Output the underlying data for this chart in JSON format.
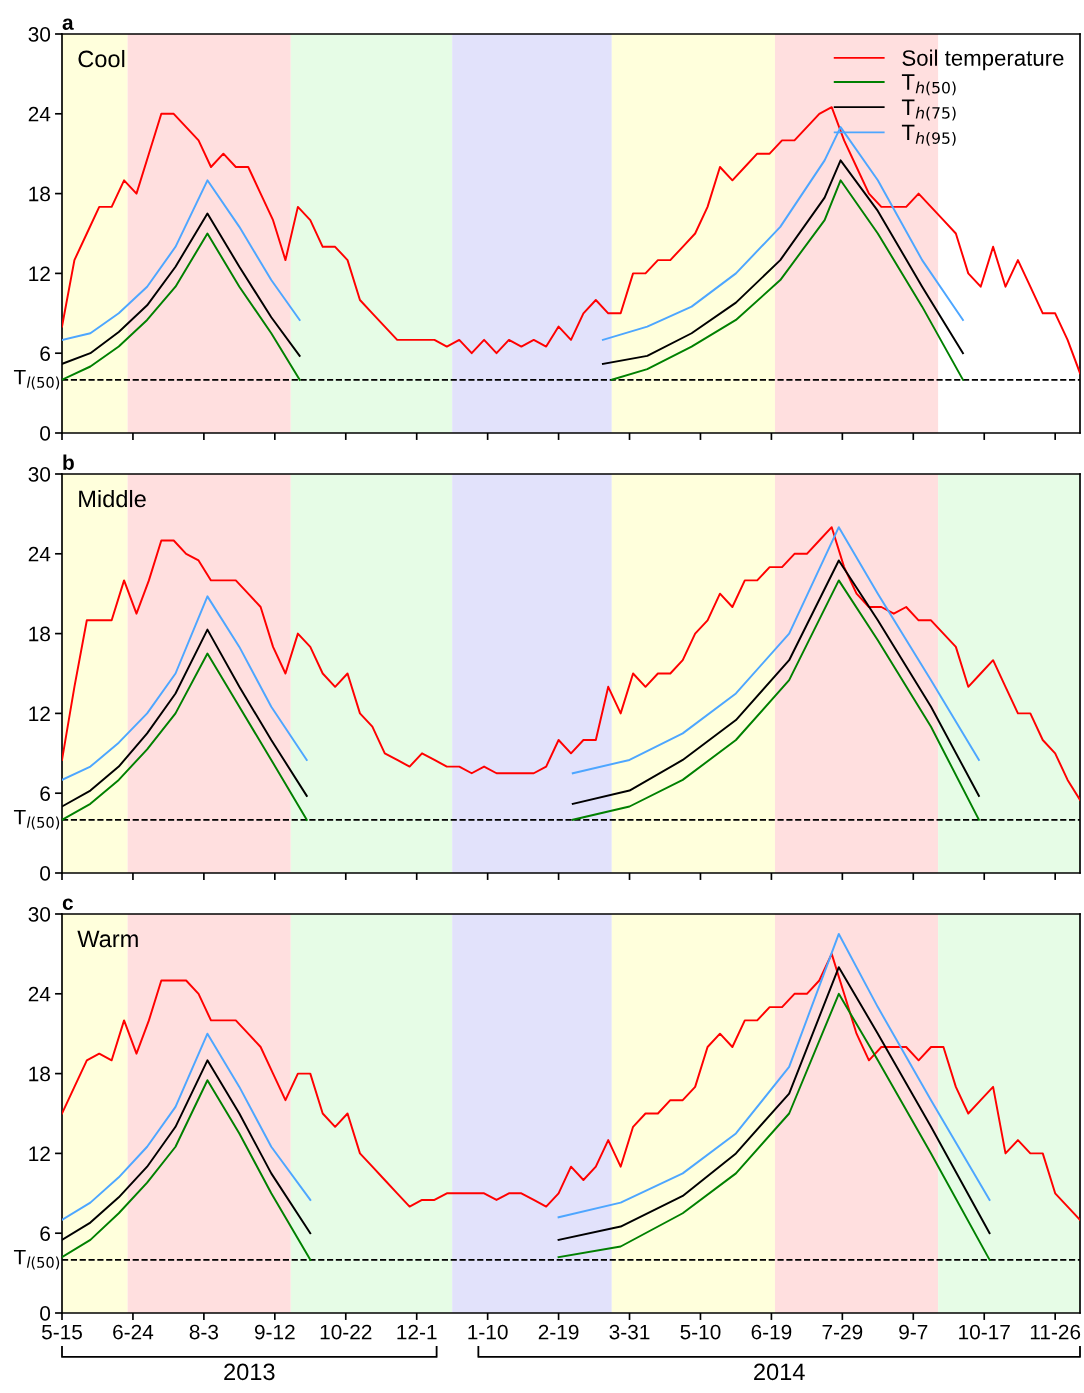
{
  "chart_data": [
    {
      "type": "line",
      "title": "a",
      "subtitle": "Cool",
      "legend": "top right",
      "tick_labels": "y",
      "xlim": [
        "2013-05-15",
        "2014-12-10"
      ],
      "ylim": [
        0,
        30
      ],
      "yticks": [
        0,
        6,
        12,
        18,
        24,
        30
      ],
      "xticks": [
        {
          "value": "2013-05-15",
          "label": null
        },
        {
          "value": "2013-06-24",
          "label": null
        },
        {
          "value": "2013-08-03",
          "label": null
        },
        {
          "value": "2013-09-12",
          "label": null
        },
        {
          "value": "2013-10-22",
          "label": null
        },
        {
          "value": "2013-12-01",
          "label": null
        },
        {
          "value": "2014-01-10",
          "label": null
        },
        {
          "value": "2014-02-19",
          "label": null
        },
        {
          "value": "2014-03-31",
          "label": null
        },
        {
          "value": "2014-05-10",
          "label": null
        },
        {
          "value": "2014-06-19",
          "label": null
        },
        {
          "value": "2014-07-29",
          "label": null
        },
        {
          "value": "2014-09-07",
          "label": null
        },
        {
          "value": "2014-10-17",
          "label": null
        },
        {
          "value": "2014-11-26",
          "label": null
        }
      ],
      "bands": [
        {
          "axis": "x",
          "from": "2013-05-15",
          "to": "2013-06-21",
          "color": "#ffffdc"
        },
        {
          "axis": "x",
          "from": "2013-06-21",
          "to": "2013-09-21",
          "color": "#ffdfdf"
        },
        {
          "axis": "x",
          "from": "2013-09-21",
          "to": "2013-12-21",
          "color": "#e6fce6"
        },
        {
          "axis": "x",
          "from": "2013-12-21",
          "to": "2014-03-21",
          "color": "#e2e2fb"
        },
        {
          "axis": "x",
          "from": "2014-03-21",
          "to": "2014-06-21",
          "color": "#ffffdc"
        },
        {
          "axis": "x",
          "from": "2014-06-21",
          "to": "2014-09-21",
          "color": "#ffdfdf"
        }
      ],
      "ref_lines": [
        {
          "axis": "y",
          "value": 4,
          "label": "T$_{l(50)}$",
          "color": "#000000",
          "line_style": "dashed"
        }
      ],
      "x": [
        "2013-05-15",
        "2013-05-22",
        "2013-05-29",
        "2013-06-05",
        "2013-06-12",
        "2013-06-19",
        "2013-06-26",
        "2013-07-03",
        "2013-07-10",
        "2013-07-17",
        "2013-07-24",
        "2013-07-31",
        "2013-08-07",
        "2013-08-14",
        "2013-08-21",
        "2013-08-28",
        "2013-09-04",
        "2013-09-11",
        "2013-09-18",
        "2013-09-25",
        "2013-10-02",
        "2013-10-09",
        "2013-10-16",
        "2013-10-23",
        "2013-10-30",
        "2013-11-06",
        "2013-11-13",
        "2013-11-20",
        "2013-11-27",
        "2013-12-04",
        "2013-12-11",
        "2013-12-18",
        "2013-12-25",
        "2014-01-01",
        "2014-01-08",
        "2014-01-15",
        "2014-01-22",
        "2014-01-29",
        "2014-02-05",
        "2014-02-12",
        "2014-02-19",
        "2014-02-26",
        "2014-03-05",
        "2014-03-12",
        "2014-03-19",
        "2014-03-26",
        "2014-04-02",
        "2014-04-09",
        "2014-04-16",
        "2014-04-23",
        "2014-04-30",
        "2014-05-07",
        "2014-05-14",
        "2014-05-21",
        "2014-05-28",
        "2014-06-04",
        "2014-06-11",
        "2014-06-18",
        "2014-06-25",
        "2014-07-02",
        "2014-07-09",
        "2014-07-16",
        "2014-07-23",
        "2014-07-30",
        "2014-08-06",
        "2014-08-13",
        "2014-08-20",
        "2014-08-27",
        "2014-09-03",
        "2014-09-10",
        "2014-09-17",
        "2014-09-24",
        "2014-10-01",
        "2014-10-08",
        "2014-10-15",
        "2014-10-22",
        "2014-10-29",
        "2014-11-05",
        "2014-11-12",
        "2014-11-19",
        "2014-11-26",
        "2014-12-03",
        "2014-12-10"
      ],
      "series": [
        {
          "name": "Soil temperature",
          "color": "#ff0000",
          "values": [
            8,
            13,
            15,
            17,
            17,
            19,
            18,
            21,
            24,
            24,
            23,
            22,
            20,
            21,
            20,
            20,
            18,
            16,
            13,
            17,
            16,
            14,
            14,
            13,
            10,
            9,
            8,
            7,
            7,
            7,
            7,
            6.5,
            7,
            6,
            7,
            6,
            7,
            6.5,
            7,
            6.5,
            8,
            7,
            9,
            10,
            9,
            9,
            12,
            12,
            13,
            13,
            14,
            15,
            17,
            20,
            19,
            20,
            21,
            21,
            22,
            22,
            23,
            24,
            24.5,
            22,
            20,
            18,
            17,
            17,
            17,
            18,
            17,
            16,
            15,
            12,
            11,
            14,
            11,
            13,
            11,
            9,
            9,
            7,
            4.5
          ]
        },
        {
          "name": "T$_{h(50)}$",
          "color": "#008000",
          "x": [
            "2013-05-15",
            "2013-05-31",
            "2013-06-16",
            "2013-07-02",
            "2013-07-18",
            "2013-08-05",
            "2013-08-23",
            "2013-09-10",
            "2013-09-26",
            "2014-01-01",
            "2014-03-21",
            "2014-04-10",
            "2014-05-05",
            "2014-05-30",
            "2014-06-24",
            "2014-07-19",
            "2014-07-28",
            "2014-08-18",
            "2014-09-12",
            "2014-10-05"
          ],
          "values": [
            4,
            5,
            6.5,
            8.5,
            11,
            15,
            11,
            7.5,
            4,
            null,
            4,
            4.8,
            6.5,
            8.5,
            11.5,
            16,
            19,
            15,
            9.5,
            4
          ]
        },
        {
          "name": "T$_{h(75)}$",
          "color": "#000000",
          "x": [
            "2013-05-15",
            "2013-05-31",
            "2013-06-16",
            "2013-07-02",
            "2013-07-18",
            "2013-08-05",
            "2013-08-23",
            "2013-09-10",
            "2013-09-26",
            "2014-01-01",
            "2014-03-16",
            "2014-04-10",
            "2014-05-05",
            "2014-05-30",
            "2014-06-24",
            "2014-07-19",
            "2014-07-28",
            "2014-08-18",
            "2014-09-12",
            "2014-10-05"
          ],
          "values": [
            5.2,
            6,
            7.6,
            9.6,
            12.5,
            16.5,
            12.5,
            8.7,
            5.8,
            null,
            5.2,
            5.8,
            7.5,
            9.8,
            13,
            17.7,
            20.5,
            16.7,
            11,
            6
          ]
        },
        {
          "name": "T$_{h(95)}$",
          "color": "#4da6ff",
          "x": [
            "2013-05-15",
            "2013-05-31",
            "2013-06-16",
            "2013-07-02",
            "2013-07-18",
            "2013-08-05",
            "2013-08-23",
            "2013-09-10",
            "2013-09-26",
            "2014-01-01",
            "2014-03-16",
            "2014-04-10",
            "2014-05-05",
            "2014-05-30",
            "2014-06-24",
            "2014-07-19",
            "2014-07-28",
            "2014-08-18",
            "2014-09-12",
            "2014-10-05"
          ],
          "values": [
            7,
            7.5,
            9,
            11,
            14,
            19,
            15.5,
            11.5,
            8.5,
            null,
            7,
            8,
            9.5,
            12,
            15.5,
            20.5,
            23,
            19,
            13,
            8.5
          ]
        }
      ]
    },
    {
      "type": "line",
      "title": "b",
      "subtitle": "Middle",
      "tick_labels": "y",
      "xlim": [
        "2013-05-15",
        "2014-12-10"
      ],
      "ylim": [
        0,
        30
      ],
      "yticks": [
        0,
        6,
        12,
        18,
        24,
        30
      ],
      "xticks": [
        {
          "value": "2013-05-15",
          "label": null
        },
        {
          "value": "2013-06-24",
          "label": null
        },
        {
          "value": "2013-08-03",
          "label": null
        },
        {
          "value": "2013-09-12",
          "label": null
        },
        {
          "value": "2013-10-22",
          "label": null
        },
        {
          "value": "2013-12-01",
          "label": null
        },
        {
          "value": "2014-01-10",
          "label": null
        },
        {
          "value": "2014-02-19",
          "label": null
        },
        {
          "value": "2014-03-31",
          "label": null
        },
        {
          "value": "2014-05-10",
          "label": null
        },
        {
          "value": "2014-06-19",
          "label": null
        },
        {
          "value": "2014-07-29",
          "label": null
        },
        {
          "value": "2014-09-07",
          "label": null
        },
        {
          "value": "2014-10-17",
          "label": null
        },
        {
          "value": "2014-11-26",
          "label": null
        }
      ],
      "bands": [
        {
          "axis": "x",
          "from": "2013-05-15",
          "to": "2013-06-21",
          "color": "#ffffdc"
        },
        {
          "axis": "x",
          "from": "2013-06-21",
          "to": "2013-09-21",
          "color": "#ffdfdf"
        },
        {
          "axis": "x",
          "from": "2013-09-21",
          "to": "2013-12-21",
          "color": "#e6fce6"
        },
        {
          "axis": "x",
          "from": "2013-12-21",
          "to": "2014-03-21",
          "color": "#e2e2fb"
        },
        {
          "axis": "x",
          "from": "2014-03-21",
          "to": "2014-06-21",
          "color": "#ffffdc"
        },
        {
          "axis": "x",
          "from": "2014-06-21",
          "to": "2014-09-21",
          "color": "#ffdfdf"
        },
        {
          "axis": "x",
          "from": "2014-09-21",
          "to": "2014-12-10",
          "color": "#e6fce6"
        }
      ],
      "ref_lines": [
        {
          "axis": "y",
          "value": 4,
          "label": "T$_{l(50)}$",
          "color": "#000000",
          "line_style": "dashed"
        }
      ],
      "x": [
        "2013-05-15",
        "2013-05-22",
        "2013-05-29",
        "2013-06-05",
        "2013-06-12",
        "2013-06-19",
        "2013-06-26",
        "2013-07-03",
        "2013-07-10",
        "2013-07-17",
        "2013-07-24",
        "2013-07-31",
        "2013-08-07",
        "2013-08-14",
        "2013-08-21",
        "2013-08-28",
        "2013-09-04",
        "2013-09-11",
        "2013-09-18",
        "2013-09-25",
        "2013-10-02",
        "2013-10-09",
        "2013-10-16",
        "2013-10-23",
        "2013-10-30",
        "2013-11-06",
        "2013-11-13",
        "2013-11-20",
        "2013-11-27",
        "2013-12-04",
        "2013-12-11",
        "2013-12-18",
        "2013-12-25",
        "2014-01-01",
        "2014-01-08",
        "2014-01-15",
        "2014-01-22",
        "2014-01-29",
        "2014-02-05",
        "2014-02-12",
        "2014-02-19",
        "2014-02-26",
        "2014-03-05",
        "2014-03-12",
        "2014-03-19",
        "2014-03-26",
        "2014-04-02",
        "2014-04-09",
        "2014-04-16",
        "2014-04-23",
        "2014-04-30",
        "2014-05-07",
        "2014-05-14",
        "2014-05-21",
        "2014-05-28",
        "2014-06-04",
        "2014-06-11",
        "2014-06-18",
        "2014-06-25",
        "2014-07-02",
        "2014-07-09",
        "2014-07-16",
        "2014-07-23",
        "2014-07-30",
        "2014-08-06",
        "2014-08-13",
        "2014-08-20",
        "2014-08-27",
        "2014-09-03",
        "2014-09-10",
        "2014-09-17",
        "2014-09-24",
        "2014-10-01",
        "2014-10-08",
        "2014-10-15",
        "2014-10-22",
        "2014-10-29",
        "2014-11-05",
        "2014-11-12",
        "2014-11-19",
        "2014-11-26",
        "2014-12-03",
        "2014-12-10"
      ],
      "series": [
        {
          "color": "#ff0000",
          "values": [
            8.5,
            14,
            19,
            19,
            19,
            22,
            19.5,
            22,
            25,
            25,
            24,
            23.5,
            22,
            22,
            22,
            21,
            20,
            17,
            15,
            18,
            17,
            15,
            14,
            15,
            12,
            11,
            9,
            8.5,
            8,
            9,
            8.5,
            8,
            8,
            7.5,
            8,
            7.5,
            7.5,
            7.5,
            7.5,
            8,
            10,
            9,
            10,
            10,
            14,
            12,
            15,
            14,
            15,
            15,
            16,
            18,
            19,
            21,
            20,
            22,
            22,
            23,
            23,
            24,
            24,
            25,
            26,
            23,
            21,
            20,
            20,
            19.5,
            20,
            19,
            19,
            18,
            17,
            14,
            15,
            16,
            14,
            12,
            12,
            10,
            9,
            7,
            5.5
          ]
        },
        {
          "color": "#008000",
          "x": [
            "2013-05-15",
            "2013-05-31",
            "2013-06-16",
            "2013-07-02",
            "2013-07-18",
            "2013-08-05",
            "2013-08-23",
            "2013-09-10",
            "2013-09-30",
            "2014-01-01",
            "2014-02-27",
            "2014-03-31",
            "2014-04-30",
            "2014-05-30",
            "2014-06-29",
            "2014-07-27",
            "2014-08-18",
            "2014-09-17",
            "2014-10-14"
          ],
          "values": [
            4,
            5.2,
            7,
            9.3,
            12,
            16.5,
            12.5,
            8.5,
            4,
            null,
            4,
            5,
            7,
            10,
            14.5,
            22,
            17.5,
            11,
            4
          ]
        },
        {
          "color": "#000000",
          "x": [
            "2013-05-15",
            "2013-05-31",
            "2013-06-16",
            "2013-07-02",
            "2013-07-18",
            "2013-08-05",
            "2013-08-23",
            "2013-09-10",
            "2013-09-30",
            "2014-01-01",
            "2014-02-27",
            "2014-03-31",
            "2014-04-30",
            "2014-05-30",
            "2014-06-29",
            "2014-07-27",
            "2014-08-18",
            "2014-09-17",
            "2014-10-14"
          ],
          "values": [
            5,
            6.2,
            8,
            10.5,
            13.5,
            18.3,
            14,
            10,
            5.8,
            null,
            5.2,
            6.2,
            8.5,
            11.5,
            16,
            23.5,
            19,
            12.5,
            5.8
          ]
        },
        {
          "color": "#4da6ff",
          "x": [
            "2013-05-15",
            "2013-05-31",
            "2013-06-16",
            "2013-07-02",
            "2013-07-18",
            "2013-08-05",
            "2013-08-23",
            "2013-09-10",
            "2013-09-30",
            "2014-01-01",
            "2014-02-27",
            "2014-03-31",
            "2014-04-30",
            "2014-05-30",
            "2014-06-29",
            "2014-07-27",
            "2014-08-18",
            "2014-09-17",
            "2014-10-14"
          ],
          "values": [
            7,
            8,
            9.8,
            12,
            15,
            20.8,
            17,
            12.5,
            8.5,
            null,
            7.5,
            8.5,
            10.5,
            13.5,
            18,
            26,
            21,
            14.5,
            8.5
          ]
        }
      ]
    },
    {
      "type": "line",
      "title": "c",
      "subtitle": "Warm",
      "annotations": [
        "2013",
        "2014"
      ],
      "xlim": [
        "2013-05-15",
        "2014-12-10"
      ],
      "ylim": [
        0,
        30
      ],
      "yticks": [
        0,
        6,
        12,
        18,
        24,
        30
      ],
      "xticks": [
        {
          "value": "2013-05-15",
          "label": "5-15"
        },
        {
          "value": "2013-06-24",
          "label": "6-24"
        },
        {
          "value": "2013-08-03",
          "label": "8-3"
        },
        {
          "value": "2013-09-12",
          "label": "9-12"
        },
        {
          "value": "2013-10-22",
          "label": "10-22"
        },
        {
          "value": "2013-12-01",
          "label": "12-1"
        },
        {
          "value": "2014-01-10",
          "label": "1-10"
        },
        {
          "value": "2014-02-19",
          "label": "2-19"
        },
        {
          "value": "2014-03-31",
          "label": "3-31"
        },
        {
          "value": "2014-05-10",
          "label": "5-10"
        },
        {
          "value": "2014-06-19",
          "label": "6-19"
        },
        {
          "value": "2014-07-29",
          "label": "7-29"
        },
        {
          "value": "2014-09-07",
          "label": "9-7"
        },
        {
          "value": "2014-10-17",
          "label": "10-17"
        },
        {
          "value": "2014-11-26",
          "label": "11-26"
        }
      ],
      "bands": [
        {
          "axis": "x",
          "from": "2013-05-15",
          "to": "2013-06-21",
          "color": "#ffffdc"
        },
        {
          "axis": "x",
          "from": "2013-06-21",
          "to": "2013-09-21",
          "color": "#ffdfdf"
        },
        {
          "axis": "x",
          "from": "2013-09-21",
          "to": "2013-12-21",
          "color": "#e6fce6"
        },
        {
          "axis": "x",
          "from": "2013-12-21",
          "to": "2014-03-21",
          "color": "#e2e2fb"
        },
        {
          "axis": "x",
          "from": "2014-03-21",
          "to": "2014-06-21",
          "color": "#ffffdc"
        },
        {
          "axis": "x",
          "from": "2014-06-21",
          "to": "2014-09-21",
          "color": "#ffdfdf"
        },
        {
          "axis": "x",
          "from": "2014-09-21",
          "to": "2014-12-10",
          "color": "#e6fce6"
        }
      ],
      "ref_lines": [
        {
          "axis": "y",
          "value": 4,
          "label": "T$_{l(50)}$",
          "color": "#000000",
          "line_style": "dashed"
        }
      ],
      "x": [
        "2013-05-15",
        "2013-05-22",
        "2013-05-29",
        "2013-06-05",
        "2013-06-12",
        "2013-06-19",
        "2013-06-26",
        "2013-07-03",
        "2013-07-10",
        "2013-07-17",
        "2013-07-24",
        "2013-07-31",
        "2013-08-07",
        "2013-08-14",
        "2013-08-21",
        "2013-08-28",
        "2013-09-04",
        "2013-09-11",
        "2013-09-18",
        "2013-09-25",
        "2013-10-02",
        "2013-10-09",
        "2013-10-16",
        "2013-10-23",
        "2013-10-30",
        "2013-11-06",
        "2013-11-13",
        "2013-11-20",
        "2013-11-27",
        "2013-12-04",
        "2013-12-11",
        "2013-12-18",
        "2013-12-25",
        "2014-01-01",
        "2014-01-08",
        "2014-01-15",
        "2014-01-22",
        "2014-01-29",
        "2014-02-05",
        "2014-02-12",
        "2014-02-19",
        "2014-02-26",
        "2014-03-05",
        "2014-03-12",
        "2014-03-19",
        "2014-03-26",
        "2014-04-02",
        "2014-04-09",
        "2014-04-16",
        "2014-04-23",
        "2014-04-30",
        "2014-05-07",
        "2014-05-14",
        "2014-05-21",
        "2014-05-28",
        "2014-06-04",
        "2014-06-11",
        "2014-06-18",
        "2014-06-25",
        "2014-07-02",
        "2014-07-09",
        "2014-07-16",
        "2014-07-23",
        "2014-07-30",
        "2014-08-06",
        "2014-08-13",
        "2014-08-20",
        "2014-08-27",
        "2014-09-03",
        "2014-09-10",
        "2014-09-17",
        "2014-09-24",
        "2014-10-01",
        "2014-10-08",
        "2014-10-15",
        "2014-10-22",
        "2014-10-29",
        "2014-11-05",
        "2014-11-12",
        "2014-11-19",
        "2014-11-26",
        "2014-12-03",
        "2014-12-10"
      ],
      "series": [
        {
          "color": "#ff0000",
          "values": [
            15,
            17,
            19,
            19.5,
            19,
            22,
            19.5,
            22,
            25,
            25,
            25,
            24,
            22,
            22,
            22,
            21,
            20,
            18,
            16,
            18,
            18,
            15,
            14,
            15,
            12,
            11,
            10,
            9,
            8,
            8.5,
            8.5,
            9,
            9,
            9,
            9,
            8.5,
            9,
            9,
            8.5,
            8,
            9,
            11,
            10,
            11,
            13,
            11,
            14,
            15,
            15,
            16,
            16,
            17,
            20,
            21,
            20,
            22,
            22,
            23,
            23,
            24,
            24,
            25,
            27,
            24,
            21,
            19,
            20,
            20,
            20,
            19,
            20,
            20,
            17,
            15,
            16,
            17,
            12,
            13,
            12,
            12,
            9,
            8,
            7
          ]
        },
        {
          "color": "#008000",
          "x": [
            "2013-05-15",
            "2013-05-31",
            "2013-06-16",
            "2013-07-02",
            "2013-07-18",
            "2013-08-05",
            "2013-08-23",
            "2013-09-10",
            "2013-10-02",
            "2014-01-01",
            "2014-02-19",
            "2014-03-26",
            "2014-04-30",
            "2014-05-30",
            "2014-06-29",
            "2014-07-27",
            "2014-08-18",
            "2014-09-17",
            "2014-10-20"
          ],
          "values": [
            4.2,
            5.5,
            7.5,
            9.8,
            12.5,
            17.5,
            13.5,
            9,
            4,
            null,
            4.2,
            5,
            7.5,
            10.5,
            15,
            24,
            19,
            12,
            4
          ]
        },
        {
          "color": "#000000",
          "x": [
            "2013-05-15",
            "2013-05-31",
            "2013-06-16",
            "2013-07-02",
            "2013-07-18",
            "2013-08-05",
            "2013-08-23",
            "2013-09-10",
            "2013-10-02",
            "2014-01-01",
            "2014-02-19",
            "2014-03-26",
            "2014-04-30",
            "2014-05-30",
            "2014-06-29",
            "2014-07-27",
            "2014-08-18",
            "2014-09-17",
            "2014-10-20"
          ],
          "values": [
            5.5,
            6.8,
            8.7,
            11,
            14,
            19,
            15,
            10.5,
            6,
            null,
            5.5,
            6.5,
            8.8,
            12,
            16.5,
            26,
            21,
            14,
            6
          ]
        },
        {
          "color": "#4da6ff",
          "x": [
            "2013-05-15",
            "2013-05-31",
            "2013-06-16",
            "2013-07-02",
            "2013-07-18",
            "2013-08-05",
            "2013-08-23",
            "2013-09-10",
            "2013-10-02",
            "2014-01-01",
            "2014-02-19",
            "2014-03-26",
            "2014-04-30",
            "2014-05-30",
            "2014-06-29",
            "2014-07-27",
            "2014-08-18",
            "2014-09-17",
            "2014-10-20"
          ],
          "values": [
            7,
            8.3,
            10.2,
            12.5,
            15.5,
            21,
            17,
            12.5,
            8.5,
            null,
            7.2,
            8.3,
            10.5,
            13.5,
            18.5,
            28.5,
            23,
            16,
            8.5
          ]
        }
      ]
    }
  ]
}
